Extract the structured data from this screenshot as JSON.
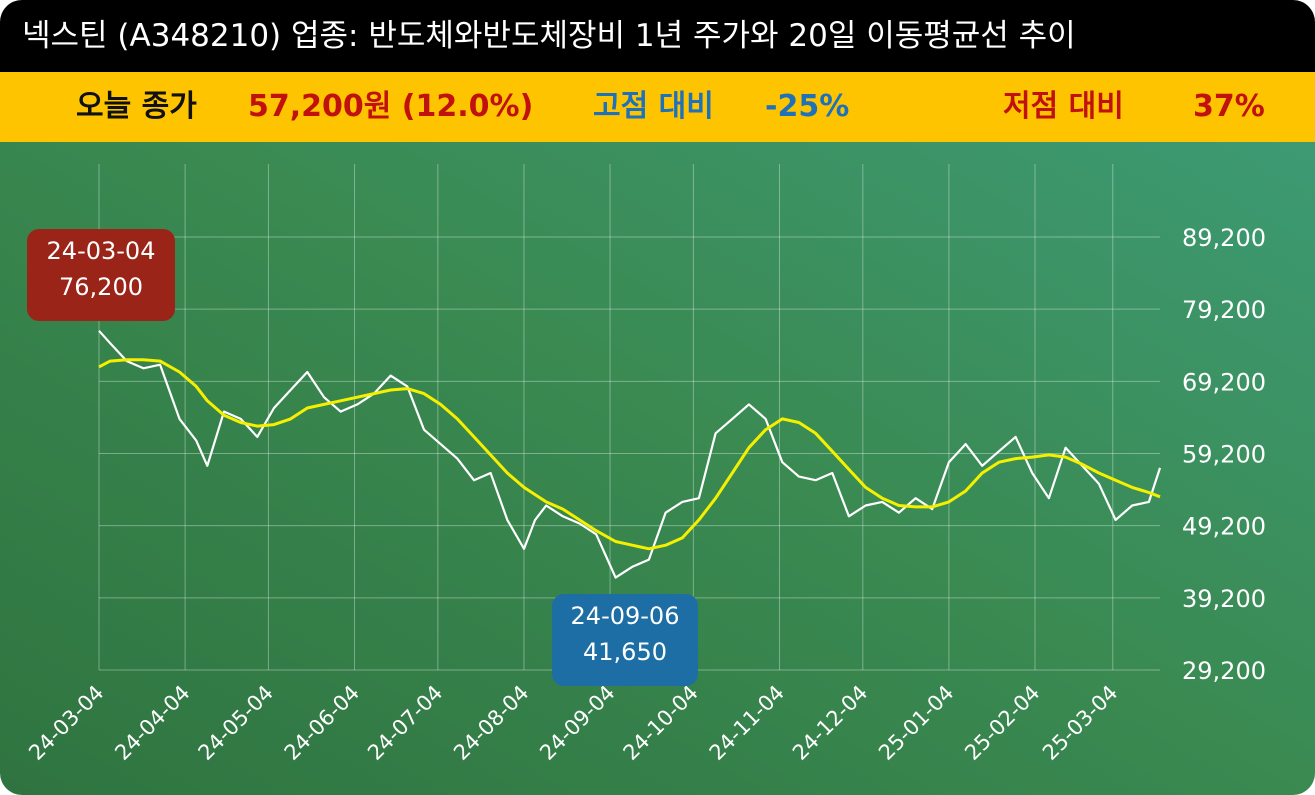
{
  "header": {
    "title": "넥스틴 (A348210) 업종: 반도체와반도체장비  1년 주가와 20일 이동평균선 추이"
  },
  "stats": {
    "today_label": "오늘 종가",
    "today_value": "57,200원 (12.0%)",
    "high_label": "고점 대비",
    "high_value": "-25%",
    "low_label": "저점 대비",
    "low_value": "37%"
  },
  "callouts": {
    "high": {
      "date": "24-03-04",
      "price": "76,200"
    },
    "low": {
      "date": "24-09-06",
      "price": "41,650"
    }
  },
  "colors": {
    "title_bg": "#000000",
    "stats_bg": "#ffc400",
    "price_line": "#ffffff",
    "ma_line": "#f5f000",
    "high_badge": "#9b2418",
    "low_badge": "#1c6ea5"
  },
  "chart_data": {
    "type": "line",
    "title": "넥스틴 (A348210) 업종: 반도체와반도체장비  1년 주가와 20일 이동평균선 추이",
    "y_ticks": [
      29200,
      39200,
      49200,
      59200,
      69200,
      79200,
      89200
    ],
    "y_tick_labels": [
      "29,200",
      "39,200",
      "49,200",
      "59,200",
      "69,200",
      "79,200",
      "89,200"
    ],
    "ylim": [
      29200,
      89200
    ],
    "x_ticks": [
      "24-03-04",
      "24-04-04",
      "24-05-04",
      "24-06-04",
      "24-07-04",
      "24-08-04",
      "24-09-04",
      "24-10-04",
      "24-11-04",
      "24-12-04",
      "25-01-04",
      "25-02-04",
      "25-03-04"
    ],
    "grid": true,
    "series": [
      {
        "key": "close",
        "x": [
          "24-03-04",
          "24-03-08",
          "24-03-14",
          "24-03-20",
          "24-03-26",
          "24-04-02",
          "24-04-08",
          "24-04-12",
          "24-04-18",
          "24-04-24",
          "24-04-30",
          "24-05-06",
          "24-05-12",
          "24-05-18",
          "24-05-24",
          "24-05-30",
          "24-06-05",
          "24-06-11",
          "24-06-17",
          "24-06-23",
          "24-06-29",
          "24-07-05",
          "24-07-11",
          "24-07-17",
          "24-07-23",
          "24-07-29",
          "24-08-04",
          "24-08-08",
          "24-08-12",
          "24-08-18",
          "24-08-24",
          "24-08-30",
          "24-09-06",
          "24-09-12",
          "24-09-18",
          "24-09-24",
          "24-09-30",
          "24-10-06",
          "24-10-12",
          "24-10-18",
          "24-10-24",
          "24-10-30",
          "24-11-05",
          "24-11-11",
          "24-11-17",
          "24-11-23",
          "24-11-29",
          "24-12-05",
          "24-12-11",
          "24-12-17",
          "24-12-23",
          "24-12-29",
          "25-01-04",
          "25-01-10",
          "25-01-16",
          "25-01-22",
          "25-01-28",
          "25-02-03",
          "25-02-09",
          "25-02-15",
          "25-02-21",
          "25-02-27",
          "25-03-05",
          "25-03-11",
          "25-03-17",
          "25-03-21"
        ],
        "y": [
          76200,
          74500,
          72000,
          71000,
          71500,
          64000,
          61000,
          57500,
          65000,
          64000,
          61500,
          65500,
          68000,
          70500,
          67000,
          65000,
          66000,
          67500,
          70000,
          68500,
          62500,
          60500,
          58500,
          55500,
          56500,
          50000,
          46000,
          50000,
          52000,
          50500,
          49500,
          48000,
          42000,
          43500,
          44500,
          51000,
          52500,
          53000,
          62000,
          64000,
          66000,
          64000,
          58000,
          56000,
          55500,
          56500,
          50500,
          52000,
          52500,
          51000,
          53000,
          51500,
          58000,
          60500,
          57500,
          59500,
          61500,
          56500,
          53000,
          60000,
          57500,
          55000,
          50000,
          52000,
          52500,
          57200
        ]
      },
      {
        "key": "ma20",
        "x": [
          "24-03-04",
          "24-03-08",
          "24-03-14",
          "24-03-20",
          "24-03-26",
          "24-04-02",
          "24-04-08",
          "24-04-12",
          "24-04-18",
          "24-04-24",
          "24-04-30",
          "24-05-06",
          "24-05-12",
          "24-05-18",
          "24-05-24",
          "24-05-30",
          "24-06-05",
          "24-06-11",
          "24-06-17",
          "24-06-23",
          "24-06-29",
          "24-07-05",
          "24-07-11",
          "24-07-17",
          "24-07-23",
          "24-07-29",
          "24-08-04",
          "24-08-08",
          "24-08-12",
          "24-08-18",
          "24-08-24",
          "24-08-30",
          "24-09-06",
          "24-09-12",
          "24-09-18",
          "24-09-24",
          "24-09-30",
          "24-10-06",
          "24-10-12",
          "24-10-18",
          "24-10-24",
          "24-10-30",
          "24-11-05",
          "24-11-11",
          "24-11-17",
          "24-11-23",
          "24-11-29",
          "24-12-05",
          "24-12-11",
          "24-12-17",
          "24-12-23",
          "24-12-29",
          "25-01-04",
          "25-01-10",
          "25-01-16",
          "25-01-22",
          "25-01-28",
          "25-02-03",
          "25-02-09",
          "25-02-15",
          "25-02-21",
          "25-02-27",
          "25-03-05",
          "25-03-11",
          "25-03-17",
          "25-03-21"
        ],
        "y": [
          71200,
          72000,
          72200,
          72200,
          72000,
          70500,
          68500,
          66500,
          64500,
          63500,
          63000,
          63200,
          64000,
          65500,
          66000,
          66500,
          67000,
          67500,
          68000,
          68200,
          67500,
          66000,
          64000,
          61500,
          59000,
          56500,
          54500,
          53500,
          52500,
          51500,
          50000,
          48500,
          47000,
          46500,
          46000,
          46500,
          47500,
          50000,
          53000,
          56500,
          60000,
          62500,
          64000,
          63500,
          62000,
          59500,
          57000,
          54500,
          53000,
          52000,
          51800,
          51800,
          52500,
          54000,
          56500,
          58000,
          58500,
          58700,
          59000,
          58700,
          57700,
          56500,
          55500,
          54500,
          53800,
          53200
        ]
      }
    ],
    "annotations": [
      {
        "label": "24-03-04\n76,200",
        "x": "24-03-04",
        "y": 76200
      },
      {
        "label": "24-09-06\n41,650",
        "x": "24-09-06",
        "y": 41650
      }
    ]
  }
}
